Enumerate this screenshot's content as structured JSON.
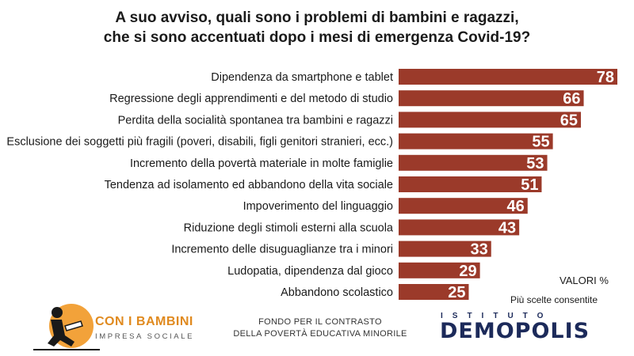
{
  "header": {
    "title_line1": "A suo avviso, quali sono i problemi di bambini e ragazzi,",
    "title_line2": "che si sono accentuati dopo i mesi di emergenza Covid-19?"
  },
  "chart_data": {
    "type": "bar",
    "orientation": "horizontal",
    "categories": [
      "Dipendenza da smartphone e tablet",
      "Regressione degli apprendimenti e del metodo di studio",
      "Perdita della socialità spontanea tra bambini e ragazzi",
      "Esclusione dei soggetti più fragili (poveri, disabili, figli genitori stranieri, ecc.)",
      "Incremento della povertà materiale in molte famiglie",
      "Tendenza ad isolamento ed abbandono della vita sociale",
      "Impoverimento del linguaggio",
      "Riduzione degli stimoli esterni alla scuola",
      "Incremento delle disuguaglianze tra i minori",
      "Ludopatia, dipendenza dal gioco",
      "Abbandono scolastico"
    ],
    "values": [
      78,
      66,
      65,
      55,
      53,
      51,
      46,
      43,
      33,
      29,
      25
    ],
    "xlim": [
      0,
      78
    ],
    "bar_color": "#9b3a2a",
    "grid": false,
    "legend": "none"
  },
  "notes": {
    "valori": "VALORI %",
    "multi": "Più scelte consentite"
  },
  "logos": {
    "con_i_bambini": {
      "name": "CON I BAMBINI",
      "subtitle": "IMPRESA SOCIALE",
      "accent": "#e08a1f"
    },
    "fondo_line1": "FONDO PER IL CONTRASTO",
    "fondo_line2": "DELLA POVERTÀ EDUCATIVA MINORILE",
    "demopolis": {
      "top": "ISTITUTO",
      "name": "DEMOPOLIS",
      "color": "#1c2a5a"
    }
  }
}
